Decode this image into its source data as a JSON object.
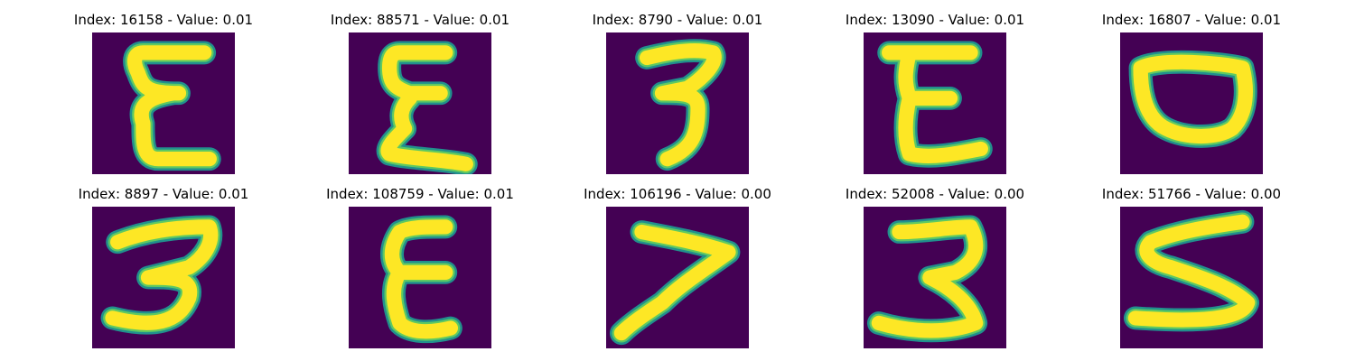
{
  "colors": {
    "background": "#440154",
    "stroke_edge": "#21908d",
    "stroke_mid": "#5ec962",
    "stroke_core": "#fde725"
  },
  "panels": [
    {
      "title": "Index: 16158 - Value: 0.01",
      "glyph": "E"
    },
    {
      "title": "Index: 88571 - Value: 0.01",
      "glyph": "E"
    },
    {
      "title": "Index: 8790 - Value: 0.01",
      "glyph": "3"
    },
    {
      "title": "Index: 13090 - Value: 0.01",
      "glyph": "E"
    },
    {
      "title": "Index: 16807 - Value: 0.01",
      "glyph": "O"
    },
    {
      "title": "Index: 8897 - Value: 0.01",
      "glyph": "3"
    },
    {
      "title": "Index: 108759 - Value: 0.01",
      "glyph": "E"
    },
    {
      "title": "Index: 106196 - Value: 0.00",
      "glyph": "7"
    },
    {
      "title": "Index: 52008 - Value: 0.00",
      "glyph": "3"
    },
    {
      "title": "Index: 51766 - Value: 0.00",
      "glyph": "5"
    }
  ]
}
